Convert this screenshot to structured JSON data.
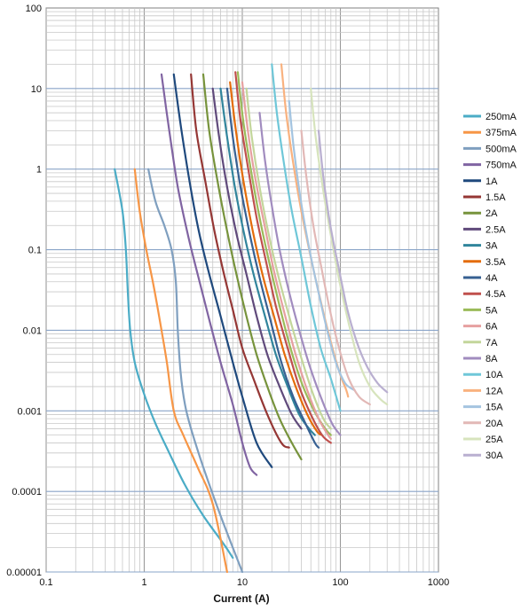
{
  "chart_data": {
    "type": "line",
    "title": "",
    "xlabel": "Current (A)",
    "ylabel": "",
    "xscale": "log",
    "yscale": "log",
    "xlim": [
      0.1,
      1000
    ],
    "ylim": [
      1e-05,
      100
    ],
    "grid": true,
    "legend_position": "right",
    "x_tick_labels": [
      "0.1",
      "1",
      "10",
      "100",
      "1000"
    ],
    "y_tick_labels": [
      "0.00001",
      "0.0001",
      "0.001",
      "0.01",
      "0.1",
      "1",
      "10",
      "100"
    ],
    "series": [
      {
        "name": "250mA",
        "color": "#4BACC6",
        "points": [
          [
            0.5,
            1
          ],
          [
            0.6,
            0.3
          ],
          [
            0.65,
            0.1
          ],
          [
            0.68,
            0.03
          ],
          [
            0.72,
            0.01
          ],
          [
            0.8,
            0.004
          ],
          [
            1,
            0.0016
          ],
          [
            1.3,
            0.0007
          ],
          [
            1.8,
            0.0003
          ],
          [
            2.6,
            0.00012
          ],
          [
            4,
            5e-05
          ],
          [
            6.5,
            2.2e-05
          ],
          [
            8,
            1.5e-05
          ]
        ]
      },
      {
        "name": "375mA",
        "color": "#F79646",
        "points": [
          [
            0.8,
            1
          ],
          [
            0.9,
            0.3
          ],
          [
            1.05,
            0.1
          ],
          [
            1.25,
            0.035
          ],
          [
            1.5,
            0.01
          ],
          [
            1.7,
            0.004
          ],
          [
            2,
            0.001
          ],
          [
            2.5,
            0.0005
          ],
          [
            3.5,
            0.0002
          ],
          [
            5,
            7e-05
          ],
          [
            7,
            1e-05
          ]
        ]
      },
      {
        "name": "500mA",
        "color": "#7F9FBF",
        "points": [
          [
            1.1,
            1
          ],
          [
            1.3,
            0.4
          ],
          [
            1.6,
            0.2
          ],
          [
            1.9,
            0.1
          ],
          [
            2.1,
            0.04
          ],
          [
            2.2,
            0.01
          ],
          [
            2.35,
            0.003
          ],
          [
            2.6,
            0.0012
          ],
          [
            3,
            0.0006
          ],
          [
            4,
            0.0002
          ],
          [
            6,
            5e-05
          ],
          [
            10,
            1e-05
          ]
        ]
      },
      {
        "name": "750mA",
        "color": "#8064A2",
        "points": [
          [
            1.5,
            15
          ],
          [
            1.8,
            3
          ],
          [
            2.2,
            0.6
          ],
          [
            2.8,
            0.15
          ],
          [
            3.5,
            0.05
          ],
          [
            4.5,
            0.015
          ],
          [
            6,
            0.004
          ],
          [
            8,
            0.0012
          ],
          [
            10,
            0.0004
          ],
          [
            12,
            0.0002
          ],
          [
            14,
            0.00016
          ]
        ]
      },
      {
        "name": "1A",
        "color": "#1F497D",
        "points": [
          [
            2,
            15
          ],
          [
            2.4,
            3
          ],
          [
            2.9,
            0.7
          ],
          [
            3.6,
            0.17
          ],
          [
            4.6,
            0.05
          ],
          [
            6,
            0.015
          ],
          [
            8,
            0.004
          ],
          [
            10,
            0.0015
          ],
          [
            14,
            0.0004
          ],
          [
            20,
            0.0002
          ]
        ]
      },
      {
        "name": "1.5A",
        "color": "#953735",
        "points": [
          [
            3,
            15
          ],
          [
            3.4,
            3
          ],
          [
            4.2,
            0.7
          ],
          [
            5.2,
            0.17
          ],
          [
            6.5,
            0.05
          ],
          [
            8,
            0.018
          ],
          [
            10,
            0.006
          ],
          [
            13,
            0.0025
          ],
          [
            18,
            0.0009
          ],
          [
            25,
            0.0004
          ],
          [
            30,
            0.00035
          ]
        ]
      },
      {
        "name": "2A",
        "color": "#77933C",
        "points": [
          [
            4,
            15
          ],
          [
            4.6,
            3
          ],
          [
            5.6,
            0.7
          ],
          [
            7,
            0.17
          ],
          [
            8.7,
            0.05
          ],
          [
            11,
            0.015
          ],
          [
            14,
            0.005
          ],
          [
            18,
            0.002
          ],
          [
            24,
            0.0008
          ],
          [
            32,
            0.0004
          ],
          [
            40,
            0.00025
          ]
        ]
      },
      {
        "name": "2.5A",
        "color": "#604A7B",
        "points": [
          [
            5,
            10
          ],
          [
            5.8,
            2.5
          ],
          [
            7,
            0.6
          ],
          [
            8.7,
            0.16
          ],
          [
            11,
            0.05
          ],
          [
            14,
            0.015
          ],
          [
            18,
            0.005
          ],
          [
            24,
            0.002
          ],
          [
            32,
            0.0009
          ],
          [
            40,
            0.0006
          ]
        ]
      },
      {
        "name": "3A",
        "color": "#31859C",
        "points": [
          [
            6,
            10
          ],
          [
            7,
            2.5
          ],
          [
            8.4,
            0.6
          ],
          [
            10.4,
            0.16
          ],
          [
            13,
            0.05
          ],
          [
            17,
            0.015
          ],
          [
            22,
            0.005
          ],
          [
            29,
            0.002
          ],
          [
            38,
            0.0009
          ],
          [
            48,
            0.0006
          ],
          [
            55,
            0.0005
          ]
        ]
      },
      {
        "name": "3.5A",
        "color": "#E46C0A",
        "points": [
          [
            7.5,
            12
          ],
          [
            8.6,
            3
          ],
          [
            10.3,
            0.7
          ],
          [
            12.8,
            0.17
          ],
          [
            16,
            0.05
          ],
          [
            21,
            0.015
          ],
          [
            27,
            0.005
          ],
          [
            35,
            0.002
          ],
          [
            46,
            0.0009
          ],
          [
            58,
            0.00055
          ],
          [
            65,
            0.0005
          ]
        ]
      },
      {
        "name": "4A",
        "color": "#376092",
        "points": [
          [
            7,
            10
          ],
          [
            8,
            2.5
          ],
          [
            9.6,
            0.6
          ],
          [
            12,
            0.15
          ],
          [
            15,
            0.045
          ],
          [
            19.5,
            0.013
          ],
          [
            25,
            0.004
          ],
          [
            33,
            0.0015
          ],
          [
            44,
            0.0007
          ],
          [
            55,
            0.0004
          ],
          [
            60,
            0.00035
          ]
        ]
      },
      {
        "name": "4.5A",
        "color": "#C0504D",
        "points": [
          [
            8.5,
            16
          ],
          [
            9.6,
            4
          ],
          [
            11.5,
            1
          ],
          [
            14,
            0.25
          ],
          [
            17.5,
            0.07
          ],
          [
            22,
            0.02
          ],
          [
            29,
            0.006
          ],
          [
            38,
            0.002
          ],
          [
            50,
            0.0009
          ],
          [
            65,
            0.0005
          ],
          [
            80,
            0.0004
          ]
        ]
      },
      {
        "name": "5A",
        "color": "#9BBB59",
        "points": [
          [
            9,
            16
          ],
          [
            10.2,
            4
          ],
          [
            12.2,
            1
          ],
          [
            15,
            0.25
          ],
          [
            18.8,
            0.07
          ],
          [
            24,
            0.02
          ],
          [
            31,
            0.006
          ],
          [
            41,
            0.0021
          ],
          [
            54,
            0.001
          ],
          [
            70,
            0.0006
          ],
          [
            80,
            0.0005
          ]
        ]
      },
      {
        "name": "6A",
        "color": "#E6A0A0",
        "points": [
          [
            10,
            12
          ],
          [
            11.4,
            3
          ],
          [
            13.6,
            0.75
          ],
          [
            17,
            0.19
          ],
          [
            21,
            0.055
          ],
          [
            27,
            0.016
          ],
          [
            35,
            0.005
          ],
          [
            46,
            0.0018
          ],
          [
            60,
            0.0008
          ],
          [
            75,
            0.0005
          ],
          [
            80,
            0.00045
          ]
        ]
      },
      {
        "name": "7A",
        "color": "#C3D69B",
        "points": [
          [
            11,
            10
          ],
          [
            12.5,
            2.5
          ],
          [
            15,
            0.6
          ],
          [
            18.5,
            0.16
          ],
          [
            23,
            0.05
          ],
          [
            30,
            0.015
          ],
          [
            39,
            0.005
          ],
          [
            51,
            0.0018
          ],
          [
            67,
            0.0008
          ],
          [
            80,
            0.0006
          ]
        ]
      },
      {
        "name": "8A",
        "color": "#A18CBF",
        "points": [
          [
            15,
            5
          ],
          [
            17,
            1.3
          ],
          [
            20,
            0.35
          ],
          [
            24,
            0.1
          ],
          [
            30,
            0.03
          ],
          [
            38,
            0.01
          ],
          [
            49,
            0.0035
          ],
          [
            63,
            0.0015
          ],
          [
            82,
            0.0007
          ],
          [
            100,
            0.0005
          ]
        ]
      },
      {
        "name": "10A",
        "color": "#6FC7D8",
        "points": [
          [
            20,
            20
          ],
          [
            22.5,
            5
          ],
          [
            26.5,
            1.2
          ],
          [
            32,
            0.3
          ],
          [
            40,
            0.08
          ],
          [
            50,
            0.02
          ],
          [
            63,
            0.006
          ],
          [
            80,
            0.0025
          ],
          [
            100,
            0.001
          ]
        ]
      },
      {
        "name": "12A",
        "color": "#F9B27F",
        "points": [
          [
            25,
            20
          ],
          [
            28,
            5
          ],
          [
            33,
            1.2
          ],
          [
            40,
            0.3
          ],
          [
            50,
            0.08
          ],
          [
            62,
            0.025
          ],
          [
            78,
            0.008
          ],
          [
            98,
            0.003
          ],
          [
            115,
            0.0018
          ],
          [
            120,
            0.0015
          ]
        ]
      },
      {
        "name": "15A",
        "color": "#A4C4E0",
        "points": [
          [
            30,
            7
          ],
          [
            33.5,
            1.8
          ],
          [
            39,
            0.45
          ],
          [
            47,
            0.12
          ],
          [
            58,
            0.035
          ],
          [
            72,
            0.011
          ],
          [
            90,
            0.004
          ],
          [
            112,
            0.0022
          ],
          [
            140,
            0.0018
          ]
        ]
      },
      {
        "name": "20A",
        "color": "#E2B8B6",
        "points": [
          [
            40,
            3
          ],
          [
            45,
            0.8
          ],
          [
            53,
            0.2
          ],
          [
            64,
            0.06
          ],
          [
            78,
            0.018
          ],
          [
            97,
            0.006
          ],
          [
            122,
            0.0025
          ],
          [
            155,
            0.0015
          ],
          [
            200,
            0.0012
          ]
        ]
      },
      {
        "name": "25A",
        "color": "#D7E4BD",
        "points": [
          [
            50,
            10
          ],
          [
            56,
            2.5
          ],
          [
            66,
            0.6
          ],
          [
            80,
            0.15
          ],
          [
            98,
            0.04
          ],
          [
            122,
            0.012
          ],
          [
            155,
            0.004
          ],
          [
            200,
            0.002
          ],
          [
            255,
            0.0014
          ],
          [
            300,
            0.0012
          ]
        ]
      },
      {
        "name": "30A",
        "color": "#B9AFD0",
        "points": [
          [
            60,
            3
          ],
          [
            67,
            0.8
          ],
          [
            79,
            0.2
          ],
          [
            96,
            0.06
          ],
          [
            118,
            0.018
          ],
          [
            148,
            0.007
          ],
          [
            188,
            0.0035
          ],
          [
            240,
            0.0022
          ],
          [
            300,
            0.0017
          ]
        ]
      }
    ]
  }
}
